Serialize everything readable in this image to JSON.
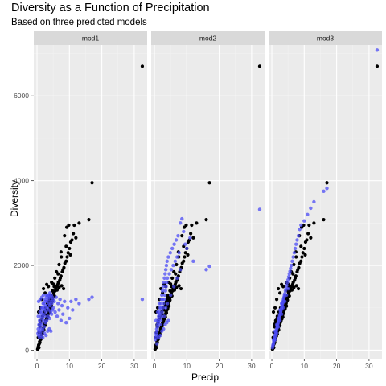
{
  "chart_data": {
    "type": "scatter",
    "title": "Diversity as a Function of Precipitation",
    "subtitle": "Based on three predicted models",
    "xlabel": "Precip",
    "ylabel": "Diversity",
    "xlim": [
      -1,
      34
    ],
    "ylim": [
      -200,
      7200
    ],
    "x_ticks": [
      0,
      10,
      20,
      30
    ],
    "y_ticks": [
      0,
      2000,
      4000,
      6000
    ],
    "grid": true,
    "facets": [
      "mod1",
      "mod2",
      "mod3"
    ],
    "observed_color": "#000000",
    "predicted_color": "#4c4cf5",
    "observed_points": [
      [
        0.3,
        40
      ],
      [
        0.4,
        80
      ],
      [
        0.5,
        120
      ],
      [
        0.6,
        60
      ],
      [
        0.7,
        150
      ],
      [
        0.8,
        200
      ],
      [
        0.9,
        180
      ],
      [
        1.0,
        240
      ],
      [
        1.1,
        300
      ],
      [
        1.2,
        260
      ],
      [
        1.3,
        350
      ],
      [
        1.4,
        330
      ],
      [
        1.5,
        400
      ],
      [
        1.6,
        420
      ],
      [
        1.7,
        380
      ],
      [
        1.8,
        450
      ],
      [
        1.9,
        500
      ],
      [
        2.0,
        520
      ],
      [
        2.1,
        480
      ],
      [
        2.2,
        560
      ],
      [
        2.3,
        600
      ],
      [
        2.4,
        620
      ],
      [
        2.5,
        580
      ],
      [
        2.6,
        650
      ],
      [
        2.7,
        700
      ],
      [
        2.8,
        680
      ],
      [
        2.9,
        720
      ],
      [
        3.0,
        760
      ],
      [
        3.1,
        740
      ],
      [
        3.2,
        800
      ],
      [
        3.3,
        820
      ],
      [
        3.4,
        780
      ],
      [
        3.5,
        860
      ],
      [
        3.6,
        900
      ],
      [
        3.7,
        880
      ],
      [
        3.8,
        940
      ],
      [
        3.9,
        960
      ],
      [
        4.0,
        1000
      ],
      [
        4.1,
        980
      ],
      [
        4.2,
        1050
      ],
      [
        4.3,
        1080
      ],
      [
        4.4,
        1100
      ],
      [
        4.5,
        1040
      ],
      [
        4.6,
        1150
      ],
      [
        4.7,
        1200
      ],
      [
        4.8,
        1180
      ],
      [
        4.9,
        1250
      ],
      [
        5.0,
        1300
      ],
      [
        5.2,
        1350
      ],
      [
        5.4,
        1280
      ],
      [
        5.6,
        1400
      ],
      [
        5.8,
        1450
      ],
      [
        6.0,
        1500
      ],
      [
        6.2,
        1420
      ],
      [
        6.4,
        1550
      ],
      [
        6.6,
        1600
      ],
      [
        6.8,
        1480
      ],
      [
        7.0,
        1650
      ],
      [
        7.2,
        1700
      ],
      [
        7.4,
        1750
      ],
      [
        7.6,
        1520
      ],
      [
        7.8,
        1850
      ],
      [
        8.0,
        1900
      ],
      [
        8.3,
        1950
      ],
      [
        8.6,
        2050
      ],
      [
        9.0,
        2100
      ],
      [
        9.3,
        2200
      ],
      [
        9.6,
        2300
      ],
      [
        10.0,
        2400
      ],
      [
        10.4,
        2550
      ],
      [
        10.8,
        2600
      ],
      [
        11.2,
        2750
      ],
      [
        8.5,
        2700
      ],
      [
        9.2,
        2900
      ],
      [
        9.8,
        2950
      ],
      [
        11.5,
        2950
      ],
      [
        13.0,
        3000
      ],
      [
        16.0,
        3080
      ],
      [
        17.0,
        3950
      ],
      [
        32.5,
        6700
      ],
      [
        0.5,
        900
      ],
      [
        1.5,
        1200
      ],
      [
        2.5,
        1350
      ],
      [
        3.5,
        1500
      ],
      [
        4.5,
        1600
      ],
      [
        5.5,
        1700
      ],
      [
        6.5,
        1800
      ],
      [
        7.5,
        2200
      ],
      [
        3.0,
        1550
      ],
      [
        2.0,
        1450
      ],
      [
        1.0,
        1000
      ],
      [
        6.0,
        1850
      ],
      [
        5.0,
        1560
      ],
      [
        4.0,
        1250
      ],
      [
        8.2,
        1450
      ],
      [
        6.8,
        2020
      ],
      [
        7.4,
        2320
      ],
      [
        9.0,
        2450
      ],
      [
        10.3,
        2250
      ],
      [
        12.0,
        2650
      ],
      [
        0.8,
        600
      ],
      [
        1.2,
        700
      ],
      [
        1.7,
        800
      ],
      [
        2.2,
        900
      ],
      [
        2.7,
        1000
      ],
      [
        3.2,
        1100
      ],
      [
        3.7,
        1150
      ],
      [
        4.2,
        1300
      ],
      [
        4.8,
        1400
      ],
      [
        5.3,
        1500
      ],
      [
        0.2,
        20
      ],
      [
        0.4,
        300
      ],
      [
        0.6,
        420
      ],
      [
        0.9,
        550
      ],
      [
        1.1,
        650
      ],
      [
        1.6,
        750
      ],
      [
        2.4,
        850
      ],
      [
        2.9,
        950
      ],
      [
        3.4,
        1050
      ],
      [
        3.9,
        1200
      ]
    ],
    "predicted_series": {
      "mod1": [
        [
          0.3,
          400
        ],
        [
          0.4,
          500
        ],
        [
          0.5,
          350
        ],
        [
          0.6,
          600
        ],
        [
          0.7,
          450
        ],
        [
          0.8,
          700
        ],
        [
          0.9,
          550
        ],
        [
          1.0,
          650
        ],
        [
          1.1,
          420
        ],
        [
          1.2,
          800
        ],
        [
          1.3,
          500
        ],
        [
          1.4,
          900
        ],
        [
          1.5,
          600
        ],
        [
          1.6,
          750
        ],
        [
          1.7,
          1000
        ],
        [
          1.8,
          480
        ],
        [
          1.9,
          850
        ],
        [
          2.0,
          700
        ],
        [
          2.1,
          1100
        ],
        [
          2.2,
          550
        ],
        [
          2.3,
          950
        ],
        [
          2.4,
          800
        ],
        [
          2.5,
          1200
        ],
        [
          2.6,
          650
        ],
        [
          2.7,
          1050
        ],
        [
          2.8,
          900
        ],
        [
          2.9,
          1250
        ],
        [
          3.0,
          700
        ],
        [
          3.1,
          1150
        ],
        [
          3.2,
          1000
        ],
        [
          3.3,
          1300
        ],
        [
          3.4,
          800
        ],
        [
          3.5,
          1200
        ],
        [
          3.6,
          950
        ],
        [
          3.7,
          1100
        ],
        [
          3.8,
          1300
        ],
        [
          3.9,
          750
        ],
        [
          4.0,
          1050
        ],
        [
          4.1,
          1250
        ],
        [
          4.2,
          900
        ],
        [
          4.3,
          1150
        ],
        [
          4.4,
          1300
        ],
        [
          4.5,
          850
        ],
        [
          4.6,
          1100
        ],
        [
          4.7,
          1250
        ],
        [
          4.8,
          950
        ],
        [
          4.9,
          1200
        ],
        [
          5.0,
          1000
        ],
        [
          5.3,
          1150
        ],
        [
          5.6,
          900
        ],
        [
          5.9,
          1250
        ],
        [
          6.2,
          800
        ],
        [
          6.5,
          1100
        ],
        [
          6.8,
          950
        ],
        [
          7.1,
          1200
        ],
        [
          7.4,
          700
        ],
        [
          7.7,
          1050
        ],
        [
          8.0,
          850
        ],
        [
          8.5,
          1150
        ],
        [
          9.0,
          650
        ],
        [
          9.5,
          1000
        ],
        [
          10.0,
          750
        ],
        [
          10.5,
          1150
        ],
        [
          11.0,
          950
        ],
        [
          12.0,
          1200
        ],
        [
          13.0,
          1100
        ],
        [
          16.0,
          1200
        ],
        [
          17.0,
          1250
        ],
        [
          32.5,
          1200
        ],
        [
          1.0,
          1200
        ],
        [
          0.5,
          1150
        ],
        [
          1.5,
          1250
        ],
        [
          2.0,
          1300
        ],
        [
          2.5,
          1150
        ],
        [
          3.0,
          1300
        ],
        [
          3.5,
          1250
        ],
        [
          4.0,
          1350
        ],
        [
          0.8,
          300
        ],
        [
          1.3,
          350
        ],
        [
          1.8,
          300
        ],
        [
          2.3,
          400
        ],
        [
          2.8,
          350
        ],
        [
          3.3,
          450
        ],
        [
          3.8,
          500
        ],
        [
          4.3,
          450
        ],
        [
          0.4,
          800
        ],
        [
          0.9,
          900
        ],
        [
          1.4,
          1000
        ],
        [
          1.9,
          1100
        ],
        [
          2.4,
          1000
        ]
      ],
      "mod2": [
        [
          0.3,
          250
        ],
        [
          0.4,
          300
        ],
        [
          0.5,
          400
        ],
        [
          0.6,
          350
        ],
        [
          0.7,
          500
        ],
        [
          0.8,
          450
        ],
        [
          0.9,
          600
        ],
        [
          1.0,
          550
        ],
        [
          1.1,
          700
        ],
        [
          1.2,
          650
        ],
        [
          1.3,
          800
        ],
        [
          1.4,
          750
        ],
        [
          1.5,
          900
        ],
        [
          1.6,
          850
        ],
        [
          1.7,
          1000
        ],
        [
          1.8,
          600
        ],
        [
          1.9,
          1100
        ],
        [
          2.0,
          700
        ],
        [
          2.1,
          1200
        ],
        [
          2.2,
          800
        ],
        [
          2.3,
          1300
        ],
        [
          2.4,
          900
        ],
        [
          2.5,
          1400
        ],
        [
          2.6,
          1000
        ],
        [
          2.7,
          1500
        ],
        [
          2.8,
          1100
        ],
        [
          2.9,
          1600
        ],
        [
          3.0,
          1200
        ],
        [
          3.1,
          1700
        ],
        [
          3.2,
          1300
        ],
        [
          3.3,
          1800
        ],
        [
          3.4,
          1400
        ],
        [
          3.5,
          1900
        ],
        [
          3.6,
          1500
        ],
        [
          3.7,
          2000
        ],
        [
          3.8,
          1600
        ],
        [
          3.9,
          2100
        ],
        [
          4.0,
          1700
        ],
        [
          4.3,
          2200
        ],
        [
          4.6,
          1800
        ],
        [
          4.9,
          2300
        ],
        [
          5.2,
          1900
        ],
        [
          5.5,
          2400
        ],
        [
          5.8,
          2000
        ],
        [
          6.1,
          2500
        ],
        [
          6.4,
          2100
        ],
        [
          6.7,
          2600
        ],
        [
          7.0,
          2200
        ],
        [
          7.3,
          2700
        ],
        [
          7.6,
          2300
        ],
        [
          8.0,
          3000
        ],
        [
          8.5,
          3100
        ],
        [
          9.0,
          2800
        ],
        [
          9.5,
          2500
        ],
        [
          10.0,
          2400
        ],
        [
          11.0,
          2650
        ],
        [
          12.0,
          2100
        ],
        [
          16.0,
          1900
        ],
        [
          17.0,
          1980
        ],
        [
          32.5,
          3320
        ],
        [
          0.5,
          700
        ],
        [
          1.0,
          900
        ],
        [
          1.5,
          1100
        ],
        [
          2.0,
          1000
        ],
        [
          2.5,
          1200
        ],
        [
          3.0,
          800
        ],
        [
          3.5,
          1000
        ],
        [
          4.0,
          1100
        ],
        [
          0.8,
          150
        ],
        [
          1.3,
          300
        ],
        [
          1.8,
          350
        ],
        [
          2.3,
          450
        ],
        [
          2.8,
          500
        ],
        [
          3.3,
          600
        ],
        [
          3.8,
          650
        ],
        [
          4.3,
          700
        ],
        [
          5.0,
          1300
        ],
        [
          6.0,
          1500
        ],
        [
          7.0,
          1700
        ],
        [
          8.0,
          1900
        ]
      ],
      "mod3": [
        [
          0.2,
          60
        ],
        [
          0.3,
          100
        ],
        [
          0.4,
          130
        ],
        [
          0.5,
          160
        ],
        [
          0.6,
          200
        ],
        [
          0.7,
          230
        ],
        [
          0.8,
          260
        ],
        [
          0.9,
          300
        ],
        [
          1.0,
          330
        ],
        [
          1.1,
          360
        ],
        [
          1.2,
          400
        ],
        [
          1.3,
          430
        ],
        [
          1.4,
          460
        ],
        [
          1.5,
          500
        ],
        [
          1.6,
          530
        ],
        [
          1.7,
          560
        ],
        [
          1.8,
          600
        ],
        [
          1.9,
          630
        ],
        [
          2.0,
          660
        ],
        [
          2.1,
          700
        ],
        [
          2.2,
          730
        ],
        [
          2.3,
          760
        ],
        [
          2.4,
          800
        ],
        [
          2.5,
          830
        ],
        [
          2.6,
          860
        ],
        [
          2.7,
          900
        ],
        [
          2.8,
          930
        ],
        [
          2.9,
          960
        ],
        [
          3.0,
          1000
        ],
        [
          3.1,
          1030
        ],
        [
          3.2,
          1060
        ],
        [
          3.3,
          1100
        ],
        [
          3.4,
          1130
        ],
        [
          3.5,
          1160
        ],
        [
          3.6,
          1200
        ],
        [
          3.7,
          1230
        ],
        [
          3.8,
          1260
        ],
        [
          3.9,
          1300
        ],
        [
          4.0,
          1330
        ],
        [
          4.2,
          1400
        ],
        [
          4.4,
          1460
        ],
        [
          4.6,
          1530
        ],
        [
          4.8,
          1600
        ],
        [
          5.0,
          1660
        ],
        [
          5.2,
          1730
        ],
        [
          5.4,
          1800
        ],
        [
          5.6,
          1860
        ],
        [
          5.8,
          1930
        ],
        [
          6.0,
          2000
        ],
        [
          6.3,
          2100
        ],
        [
          6.6,
          2200
        ],
        [
          6.9,
          2300
        ],
        [
          7.2,
          2400
        ],
        [
          7.5,
          2500
        ],
        [
          7.8,
          2600
        ],
        [
          8.2,
          2700
        ],
        [
          8.6,
          2850
        ],
        [
          9.0,
          2950
        ],
        [
          10.0,
          3050
        ],
        [
          11.0,
          3200
        ],
        [
          12.0,
          3350
        ],
        [
          13.0,
          3500
        ],
        [
          16.0,
          3750
        ],
        [
          17.0,
          3820
        ],
        [
          32.5,
          7080
        ],
        [
          1.0,
          250
        ],
        [
          1.5,
          400
        ],
        [
          2.0,
          550
        ],
        [
          2.5,
          700
        ],
        [
          3.0,
          850
        ],
        [
          3.5,
          1000
        ],
        [
          4.0,
          1150
        ],
        [
          4.5,
          1300
        ],
        [
          5.0,
          1450
        ],
        [
          0.5,
          250
        ],
        [
          1.0,
          450
        ],
        [
          1.5,
          600
        ],
        [
          2.0,
          750
        ],
        [
          2.5,
          950
        ],
        [
          3.0,
          1100
        ]
      ]
    }
  }
}
